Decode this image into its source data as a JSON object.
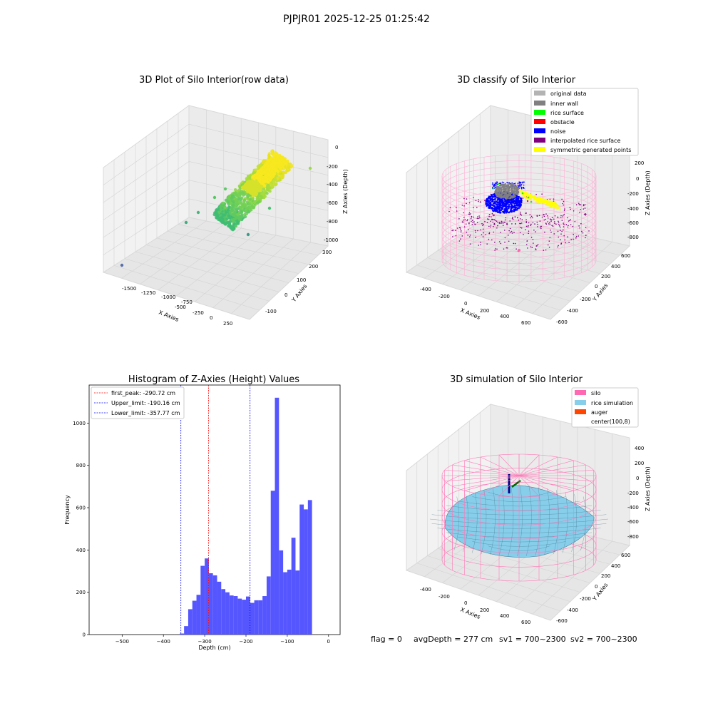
{
  "figure_title": "PJPJR01 2025-12-25 01:25:42",
  "status_line": {
    "flag": "flag = 0",
    "avg_depth": "avgDepth = 277 cm",
    "sv1": "sv1 = 700~2300",
    "sv2": "sv2 = 700~2300"
  },
  "colors": {
    "hist_bar": "#4d4dff",
    "peak_line": "#ff0000",
    "limit_line": "#0000ff",
    "original_data": "#b3b3b3",
    "inner_wall": "#808080",
    "rice_surface": "#00ff00",
    "obstacle": "#ff0000",
    "noise": "#0000ff",
    "interpolated_rice_surface": "#800080",
    "symmetric_generated_points": "#ffff00",
    "silo": "#ff69b4",
    "rice_simulation": "#87ceeb",
    "auger": "#ff4500"
  },
  "chart_data": [
    {
      "type": "scatter",
      "title": "3D Plot of Silo Interior(row data)",
      "xlabel": "X Axies",
      "ylabel": "Y Axies",
      "zlabel": "Z Axies (Depth)",
      "x_ticks": [
        "-1500",
        "-1250",
        "-1000",
        "-750",
        "-500",
        "-250",
        "0",
        "250"
      ],
      "y_ticks": [
        "-100",
        "0",
        "100",
        "200",
        "300"
      ],
      "z_ticks": [
        "0",
        "-200",
        "-400",
        "-600",
        "-800",
        "-1000"
      ],
      "xlim": [
        -1600,
        400
      ],
      "ylim": [
        -150,
        320
      ],
      "zlim": [
        -1050,
        50
      ]
    },
    {
      "type": "scatter",
      "title": "3D classify of Silo Interior",
      "xlabel": "X Axies",
      "ylabel": "Y Axies",
      "zlabel": "Z Axies (Depth)",
      "x_ticks": [
        "-400",
        "-200",
        "0",
        "200",
        "400",
        "600"
      ],
      "y_ticks": [
        "-600",
        "-400",
        "-200",
        "0",
        "200",
        "400",
        "600"
      ],
      "z_ticks": [
        "200",
        "0",
        "-200",
        "-400",
        "-600",
        "-800"
      ],
      "legend": [
        "original data",
        "inner wall",
        "rice surface",
        "obstacle",
        "noise",
        "interpolated rice surface",
        "symmetric generated points"
      ],
      "legend_loc": "upper right"
    },
    {
      "type": "bar",
      "title": "Histogram of Z-Axies (Height) Values",
      "xlabel": "Depth (cm)",
      "ylabel": "Frequency",
      "xlim": [
        -580,
        28
      ],
      "ylim": [
        0,
        1180
      ],
      "x_ticks": [
        -500,
        -400,
        -300,
        -200,
        -100,
        0
      ],
      "y_ticks": [
        0,
        200,
        400,
        600,
        800,
        1000
      ],
      "bin_edges_start": -360,
      "bin_width": 10,
      "values": [
        5,
        40,
        120,
        160,
        188,
        325,
        360,
        290,
        280,
        250,
        215,
        200,
        185,
        182,
        170,
        165,
        180,
        150,
        162,
        162,
        182,
        275,
        680,
        1120,
        398,
        295,
        307,
        458,
        303,
        615,
        592,
        636
      ],
      "vlines": [
        {
          "label": "first_peak: -290.72 cm",
          "x": -290.72,
          "style": "peak"
        },
        {
          "label": "Upper_limit: -190.16 cm",
          "x": -190.16,
          "style": "limit"
        },
        {
          "label": "Lower_limit: -357.77 cm",
          "x": -357.77,
          "style": "limit"
        }
      ],
      "legend_loc": "upper left"
    },
    {
      "type": "surface",
      "title": "3D simulation of Silo Interior",
      "xlabel": "X Axies",
      "ylabel": "Y Axies",
      "zlabel": "Z Axies (Depth)",
      "x_ticks": [
        "-400",
        "-200",
        "0",
        "200",
        "400",
        "600"
      ],
      "y_ticks": [
        "-600",
        "-400",
        "-200",
        "0",
        "200",
        "400",
        "600"
      ],
      "z_ticks": [
        "400",
        "200",
        "0",
        "-200",
        "-400",
        "-600",
        "-800"
      ],
      "legend": [
        "silo",
        "rice simulation",
        "auger",
        "center(100,8)"
      ],
      "legend_loc": "upper right"
    }
  ]
}
